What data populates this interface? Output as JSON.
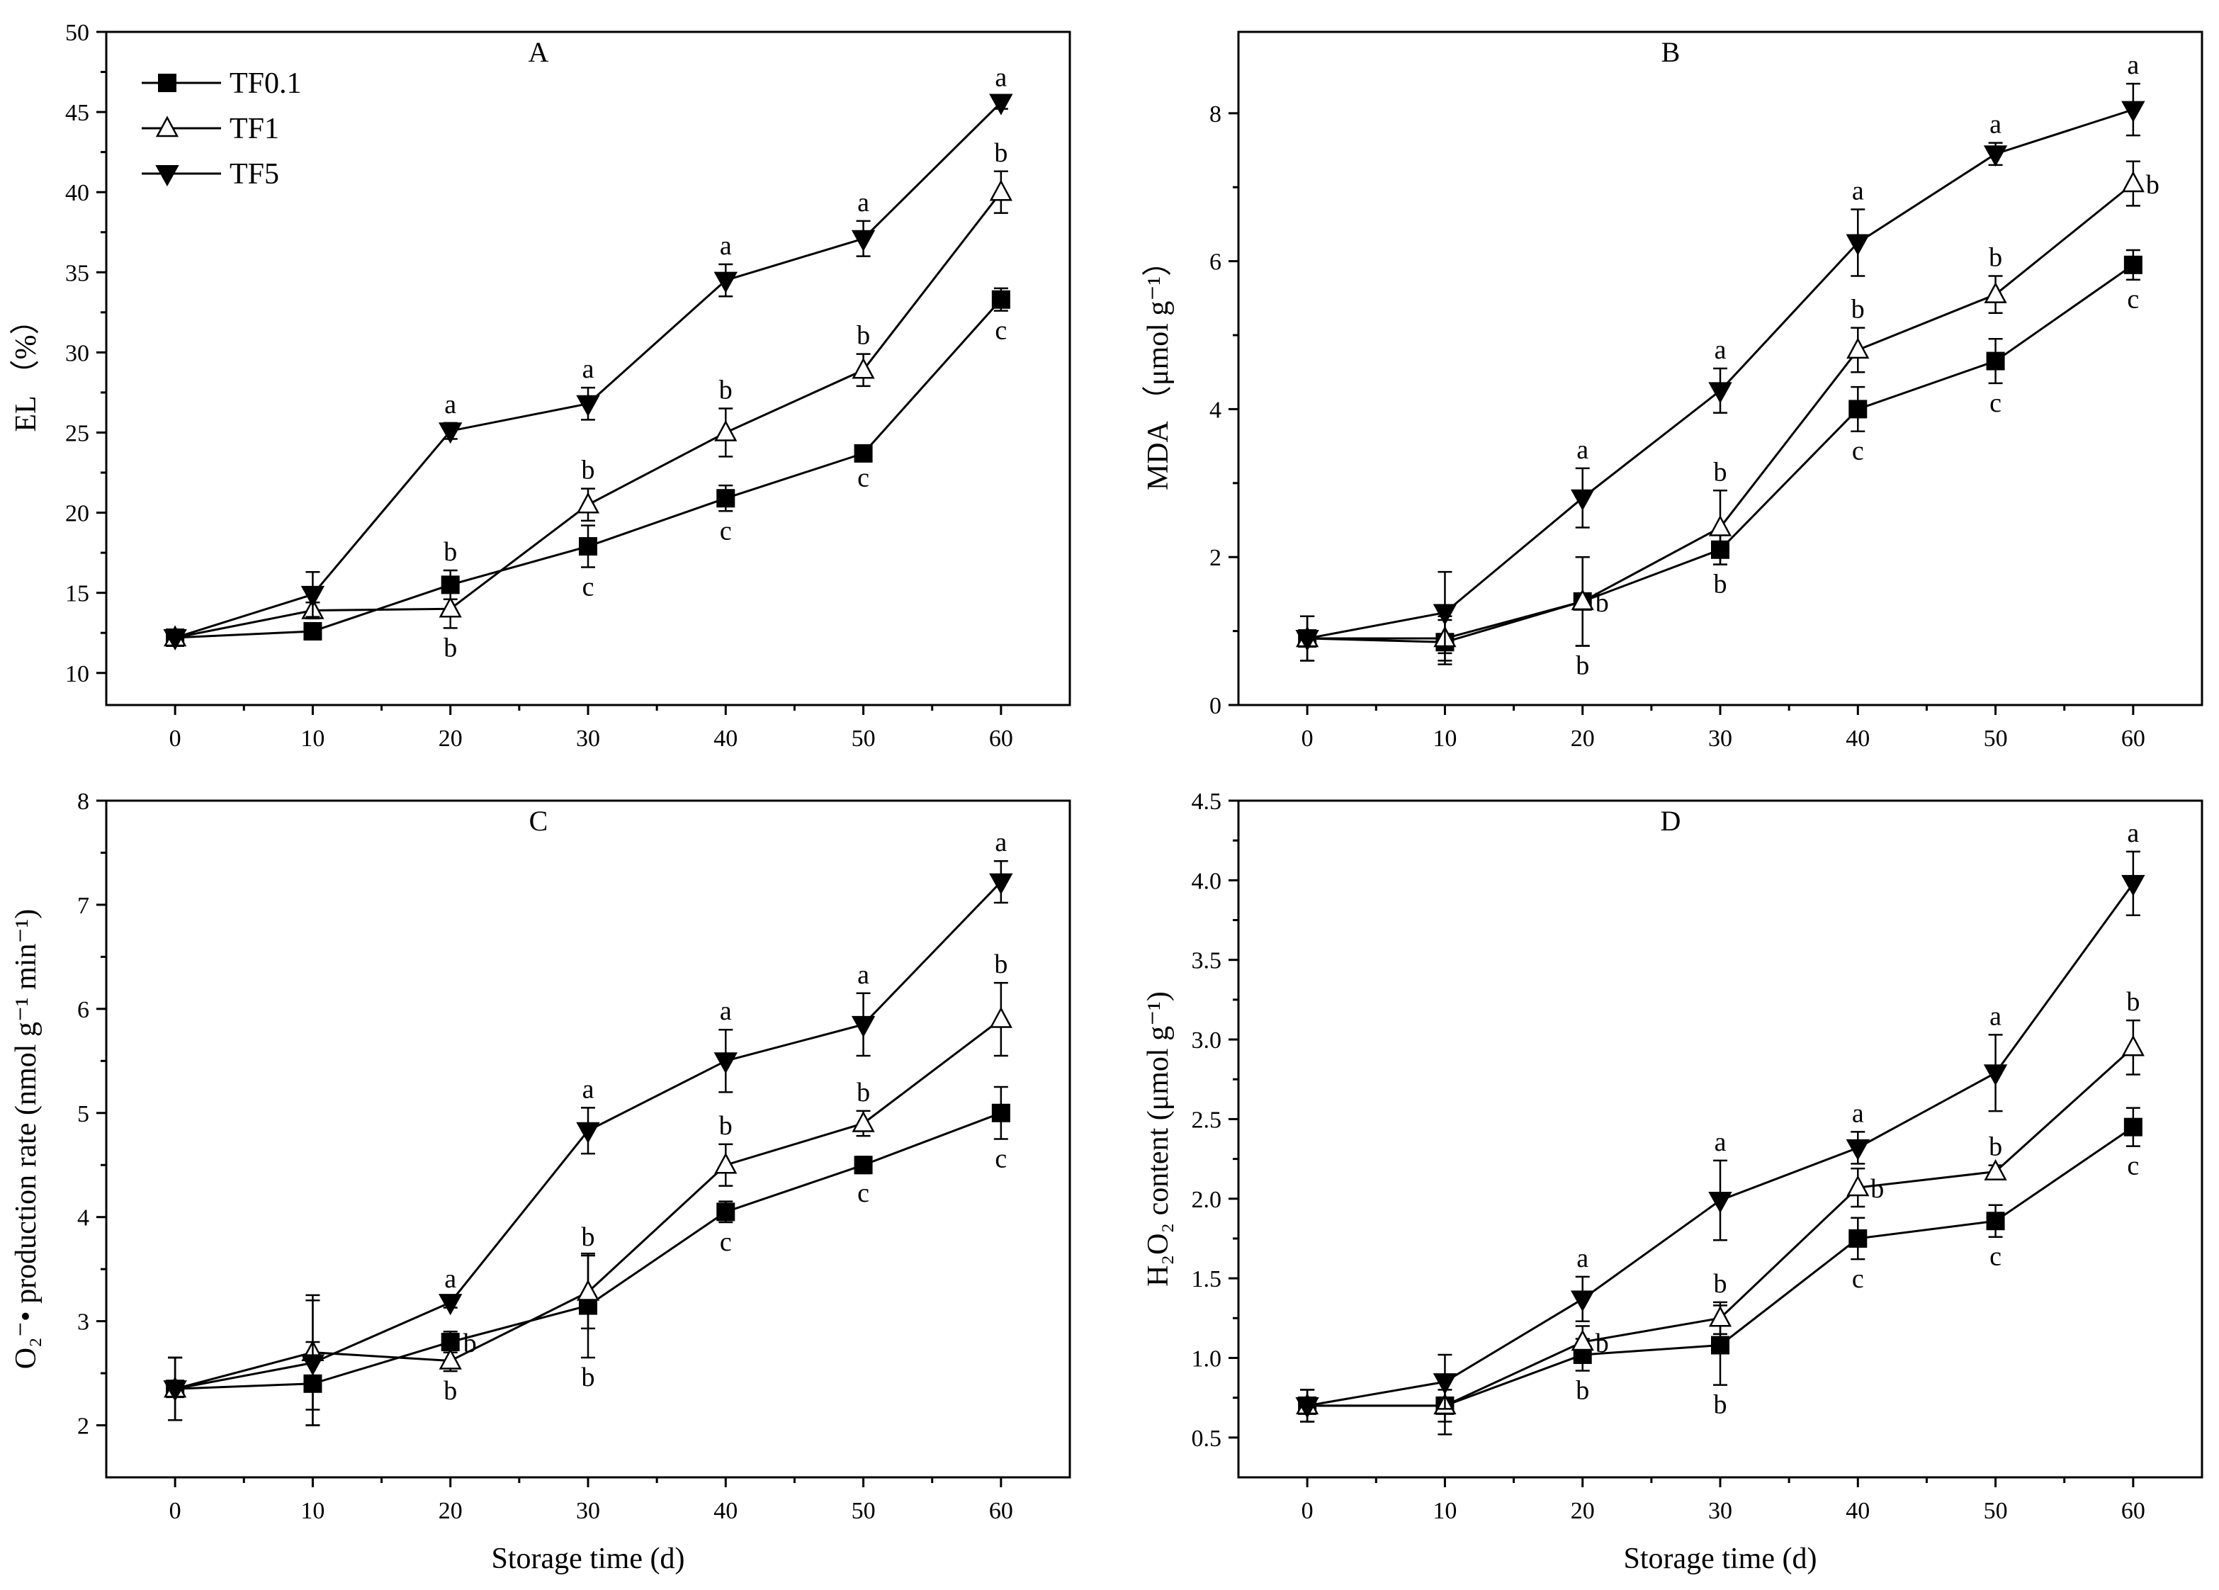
{
  "figure": {
    "series_names": [
      "TF0.1",
      "TF1",
      "TF5"
    ],
    "series_markers": [
      "filled-square",
      "open-triangle-up",
      "filled-triangle-down"
    ],
    "colors": {
      "ink": "#000000",
      "background": "#ffffff"
    }
  },
  "chart_data": [
    {
      "type": "line",
      "panel": "A",
      "title": "A",
      "xlabel": "",
      "ylabel": "EL （%）",
      "x": [
        0,
        10,
        20,
        30,
        40,
        50,
        60
      ],
      "xticks": [
        0,
        10,
        20,
        30,
        40,
        50,
        60
      ],
      "yticks": [
        10,
        15,
        20,
        25,
        30,
        35,
        40,
        45,
        50
      ],
      "xlim": [
        -5,
        65
      ],
      "ylim": [
        8,
        50
      ],
      "legend": "top-left",
      "series": [
        {
          "name": "TF0.1",
          "values": [
            12.2,
            12.6,
            15.5,
            17.9,
            20.9,
            23.7,
            33.3
          ],
          "errors": [
            0.5,
            0.5,
            0.9,
            1.3,
            0.8,
            0.3,
            0.7
          ],
          "letters": [
            "",
            "",
            "b",
            "c",
            "c",
            "c",
            "c"
          ],
          "letter_pos": [
            "",
            "",
            "above",
            "below",
            "below",
            "below",
            "below"
          ]
        },
        {
          "name": "TF1",
          "values": [
            12.2,
            13.9,
            14.0,
            20.5,
            25.0,
            28.9,
            40.0
          ],
          "errors": [
            0.5,
            0.5,
            1.2,
            1.0,
            1.5,
            1.0,
            1.3
          ],
          "letters": [
            "",
            "",
            "b",
            "b",
            "b",
            "b",
            "b"
          ],
          "letter_pos": [
            "",
            "",
            "below",
            "above",
            "above",
            "above",
            "above"
          ]
        },
        {
          "name": "TF5",
          "values": [
            12.2,
            14.9,
            25.1,
            26.8,
            34.5,
            37.1,
            45.6
          ],
          "errors": [
            0.5,
            1.4,
            0.5,
            1.0,
            1.0,
            1.1,
            0.4
          ],
          "letters": [
            "",
            "",
            "a",
            "a",
            "a",
            "a",
            "a"
          ],
          "letter_pos": [
            "",
            "",
            "above",
            "above",
            "above",
            "above",
            "above"
          ]
        }
      ]
    },
    {
      "type": "line",
      "panel": "B",
      "title": "B",
      "xlabel": "",
      "ylabel": "MDA （μmol g⁻¹）",
      "x": [
        0,
        10,
        20,
        30,
        40,
        50,
        60
      ],
      "xticks": [
        0,
        10,
        20,
        30,
        40,
        50,
        60
      ],
      "yticks": [
        0,
        2,
        4,
        6,
        8
      ],
      "xlim": [
        -5,
        65
      ],
      "ylim": [
        0,
        9.1
      ],
      "legend": "none",
      "series": [
        {
          "name": "TF0.1",
          "values": [
            0.9,
            0.85,
            1.4,
            2.1,
            4.0,
            4.65,
            5.95
          ],
          "errors": [
            0.3,
            0.3,
            0.6,
            0.2,
            0.3,
            0.3,
            0.2
          ],
          "letters": [
            "",
            "",
            "b",
            "b",
            "c",
            "c",
            "c"
          ],
          "letter_pos": [
            "",
            "",
            "below",
            "below",
            "below",
            "below",
            "below"
          ]
        },
        {
          "name": "TF1",
          "values": [
            0.9,
            0.9,
            1.4,
            2.4,
            4.8,
            5.55,
            7.05
          ],
          "errors": [
            0.3,
            0.3,
            0.6,
            0.5,
            0.3,
            0.25,
            0.3
          ],
          "letters": [
            "",
            "",
            "b",
            "b",
            "b",
            "b",
            "b"
          ],
          "letter_pos": [
            "",
            "",
            "right",
            "above",
            "above",
            "above",
            "right"
          ]
        },
        {
          "name": "TF5",
          "values": [
            0.9,
            1.25,
            2.8,
            4.25,
            6.25,
            7.45,
            8.05
          ],
          "errors": [
            0.3,
            0.55,
            0.4,
            0.3,
            0.45,
            0.15,
            0.35
          ],
          "letters": [
            "",
            "",
            "a",
            "a",
            "a",
            "a",
            "a"
          ],
          "letter_pos": [
            "",
            "",
            "above",
            "above",
            "above",
            "above",
            "above"
          ]
        }
      ]
    },
    {
      "type": "line",
      "panel": "C",
      "title": "C",
      "xlabel": "Storage time (d)",
      "ylabel": "O₂⁻• production rate (nmol g⁻¹ min⁻¹)",
      "x": [
        0,
        10,
        20,
        30,
        40,
        50,
        60
      ],
      "xticks": [
        0,
        10,
        20,
        30,
        40,
        50,
        60
      ],
      "yticks": [
        2,
        3,
        4,
        5,
        6,
        7,
        8
      ],
      "xlim": [
        -5,
        65
      ],
      "ylim": [
        1.5,
        8
      ],
      "legend": "none",
      "series": [
        {
          "name": "TF0.1",
          "values": [
            2.35,
            2.4,
            2.8,
            3.15,
            4.05,
            4.5,
            5.0
          ],
          "errors": [
            0.3,
            0.4,
            0.1,
            0.5,
            0.1,
            0.08,
            0.25
          ],
          "letters": [
            "",
            "",
            "b",
            "b",
            "c",
            "c",
            "c"
          ],
          "letter_pos": [
            "",
            "",
            "right",
            "below",
            "below",
            "below",
            "below"
          ]
        },
        {
          "name": "TF1",
          "values": [
            2.35,
            2.7,
            2.62,
            3.28,
            4.5,
            4.9,
            5.9
          ],
          "errors": [
            0.3,
            0.55,
            0.1,
            0.35,
            0.2,
            0.12,
            0.35
          ],
          "letters": [
            "",
            "",
            "b",
            "b",
            "b",
            "b",
            "b"
          ],
          "letter_pos": [
            "",
            "",
            "below",
            "above",
            "above",
            "above",
            "above"
          ]
        },
        {
          "name": "TF5",
          "values": [
            2.35,
            2.6,
            3.18,
            4.83,
            5.5,
            5.85,
            7.22
          ],
          "errors": [
            0.3,
            0.6,
            0.05,
            0.22,
            0.3,
            0.3,
            0.2
          ],
          "letters": [
            "",
            "",
            "a",
            "a",
            "a",
            "a",
            "a"
          ],
          "letter_pos": [
            "",
            "",
            "above",
            "above",
            "above",
            "above",
            "above"
          ]
        }
      ]
    },
    {
      "type": "line",
      "panel": "D",
      "title": "D",
      "xlabel": "Storage time (d)",
      "ylabel": "H₂O₂ content (μmol g⁻¹)",
      "x": [
        0,
        10,
        20,
        30,
        40,
        50,
        60
      ],
      "xticks": [
        0,
        10,
        20,
        30,
        40,
        50,
        60
      ],
      "yticks": [
        0.5,
        1.0,
        1.5,
        2.0,
        2.5,
        3.0,
        3.5,
        4.0,
        4.5
      ],
      "ytick_labels": [
        "0.5",
        "1.0",
        "1.5",
        "2.0",
        "2.5",
        "3.0",
        "3.5",
        "4.0",
        "4.5"
      ],
      "xlim": [
        -5,
        65
      ],
      "ylim": [
        0.25,
        4.5
      ],
      "legend": "none",
      "series": [
        {
          "name": "TF0.1",
          "values": [
            0.7,
            0.7,
            1.02,
            1.08,
            1.75,
            1.86,
            2.45
          ],
          "errors": [
            0.1,
            0.1,
            0.1,
            0.25,
            0.13,
            0.1,
            0.12
          ],
          "letters": [
            "",
            "",
            "b",
            "b",
            "c",
            "c",
            "c"
          ],
          "letter_pos": [
            "",
            "",
            "below",
            "below",
            "below",
            "below",
            "below"
          ]
        },
        {
          "name": "TF1",
          "values": [
            0.7,
            0.7,
            1.1,
            1.25,
            2.07,
            2.17,
            2.95
          ],
          "errors": [
            0.1,
            0.18,
            0.1,
            0.1,
            0.12,
            0.04,
            0.17
          ],
          "letters": [
            "",
            "",
            "b",
            "b",
            "b",
            "b",
            "b"
          ],
          "letter_pos": [
            "",
            "",
            "right",
            "above",
            "right",
            "above",
            "above"
          ]
        },
        {
          "name": "TF5",
          "values": [
            0.7,
            0.85,
            1.37,
            1.99,
            2.32,
            2.79,
            3.98
          ],
          "errors": [
            0.1,
            0.17,
            0.14,
            0.25,
            0.1,
            0.24,
            0.2
          ],
          "letters": [
            "",
            "",
            "a",
            "a",
            "a",
            "a",
            "a"
          ],
          "letter_pos": [
            "",
            "",
            "above",
            "above",
            "above",
            "above",
            "above"
          ]
        }
      ]
    }
  ]
}
